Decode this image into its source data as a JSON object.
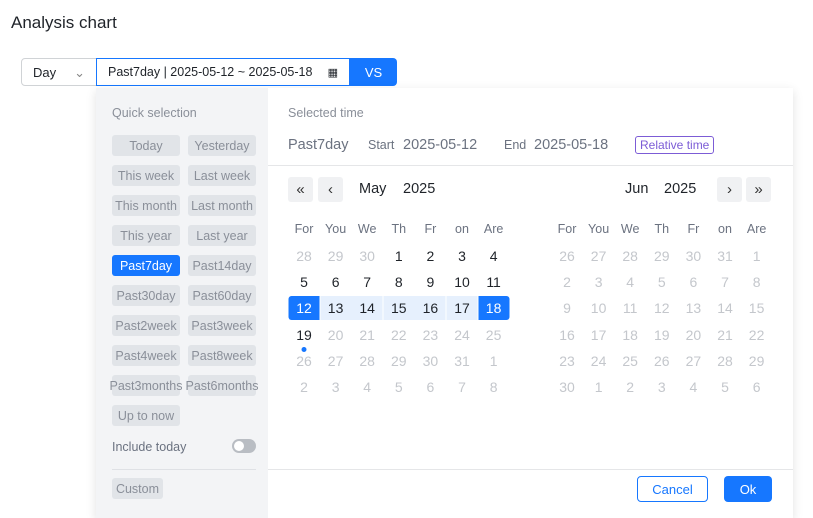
{
  "title": "Analysis chart",
  "granularity": "Day",
  "date_input": "Past7day | 2025-05-12 ~ 2025-05-18",
  "vs_label": "VS",
  "quick": {
    "heading": "Quick selection",
    "items": [
      "Today",
      "Yesterday",
      "This week",
      "Last week",
      "This month",
      "Last month",
      "This year",
      "Last year",
      "Past7day",
      "Past14day",
      "Past30day",
      "Past60day",
      "Past2week",
      "Past3week",
      "Past4week",
      "Past8week",
      "Past3months",
      "Past6months",
      "Up to now"
    ],
    "selected": "Past7day",
    "include_today": "Include today",
    "include_today_on": false,
    "custom": "Custom"
  },
  "selected": {
    "heading": "Selected time",
    "name": "Past7day",
    "start_label": "Start",
    "start": "2025-05-12",
    "end_label": "End",
    "end": "2025-05-18",
    "relative": "Relative time"
  },
  "weekdays": [
    "For",
    "You",
    "We",
    "Th",
    "Fr",
    "on",
    "Are"
  ],
  "left_month": {
    "month": "May",
    "year": "2025",
    "days": [
      [
        28,
        "out"
      ],
      [
        29,
        "out"
      ],
      [
        30,
        "out"
      ],
      [
        1,
        "in"
      ],
      [
        2,
        "in"
      ],
      [
        3,
        "in"
      ],
      [
        4,
        "in"
      ],
      [
        5,
        "in"
      ],
      [
        6,
        "in"
      ],
      [
        7,
        "in"
      ],
      [
        8,
        "in"
      ],
      [
        9,
        "in"
      ],
      [
        10,
        "in"
      ],
      [
        11,
        "in"
      ],
      [
        12,
        "start"
      ],
      [
        13,
        "range"
      ],
      [
        14,
        "range"
      ],
      [
        15,
        "range"
      ],
      [
        16,
        "range"
      ],
      [
        17,
        "range"
      ],
      [
        18,
        "end"
      ],
      [
        19,
        "today"
      ],
      [
        20,
        "disabled"
      ],
      [
        21,
        "disabled"
      ],
      [
        22,
        "disabled"
      ],
      [
        23,
        "disabled"
      ],
      [
        24,
        "disabled"
      ],
      [
        25,
        "disabled"
      ],
      [
        26,
        "disabled"
      ],
      [
        27,
        "disabled"
      ],
      [
        28,
        "disabled"
      ],
      [
        29,
        "disabled"
      ],
      [
        30,
        "disabled"
      ],
      [
        31,
        "disabled"
      ],
      [
        1,
        "out"
      ],
      [
        2,
        "out"
      ],
      [
        3,
        "out"
      ],
      [
        4,
        "out"
      ],
      [
        5,
        "out"
      ],
      [
        6,
        "out"
      ],
      [
        7,
        "out"
      ],
      [
        8,
        "out"
      ]
    ]
  },
  "right_month": {
    "month": "Jun",
    "year": "2025",
    "days": [
      [
        26,
        "out"
      ],
      [
        27,
        "out"
      ],
      [
        28,
        "out"
      ],
      [
        29,
        "out"
      ],
      [
        30,
        "out"
      ],
      [
        31,
        "out"
      ],
      [
        1,
        "disabled"
      ],
      [
        2,
        "disabled"
      ],
      [
        3,
        "disabled"
      ],
      [
        4,
        "disabled"
      ],
      [
        5,
        "disabled"
      ],
      [
        6,
        "disabled"
      ],
      [
        7,
        "disabled"
      ],
      [
        8,
        "disabled"
      ],
      [
        9,
        "disabled"
      ],
      [
        10,
        "disabled"
      ],
      [
        11,
        "disabled"
      ],
      [
        12,
        "disabled"
      ],
      [
        13,
        "disabled"
      ],
      [
        14,
        "disabled"
      ],
      [
        15,
        "disabled"
      ],
      [
        16,
        "disabled"
      ],
      [
        17,
        "disabled"
      ],
      [
        18,
        "disabled"
      ],
      [
        19,
        "disabled"
      ],
      [
        20,
        "disabled"
      ],
      [
        21,
        "disabled"
      ],
      [
        22,
        "disabled"
      ],
      [
        23,
        "disabled"
      ],
      [
        24,
        "disabled"
      ],
      [
        25,
        "disabled"
      ],
      [
        26,
        "disabled"
      ],
      [
        27,
        "disabled"
      ],
      [
        28,
        "disabled"
      ],
      [
        29,
        "disabled"
      ],
      [
        30,
        "disabled"
      ],
      [
        1,
        "out"
      ],
      [
        2,
        "out"
      ],
      [
        3,
        "out"
      ],
      [
        4,
        "out"
      ],
      [
        5,
        "out"
      ],
      [
        6,
        "out"
      ]
    ]
  },
  "footer": {
    "cancel": "Cancel",
    "ok": "Ok"
  },
  "colors": {
    "accent": "#1677ff",
    "relative_badge": "#7c5cd6"
  }
}
